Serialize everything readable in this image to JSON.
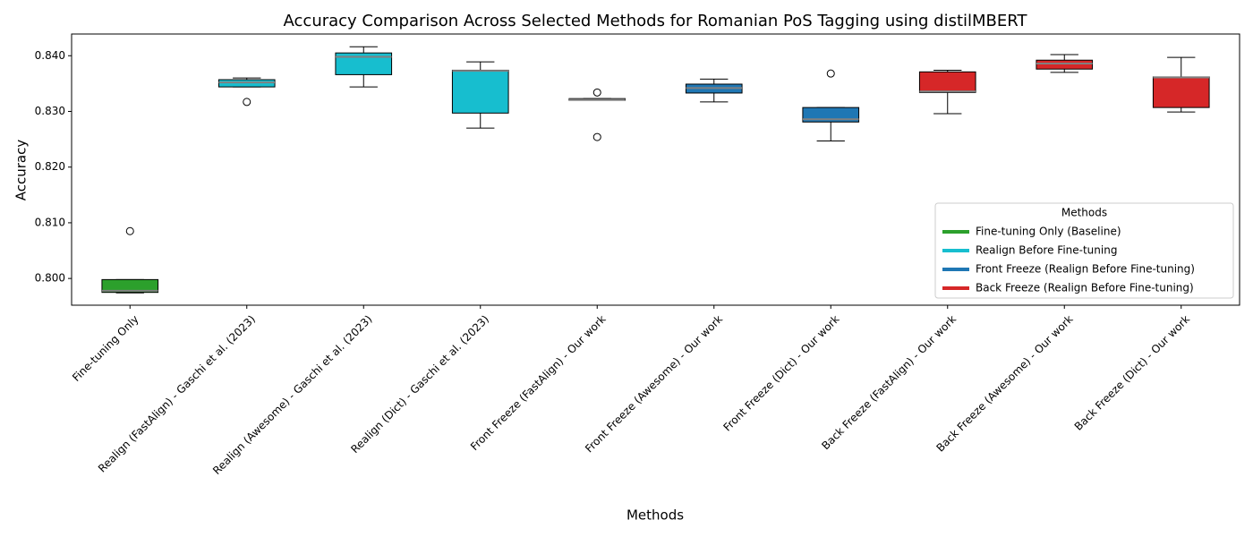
{
  "chart_data": {
    "type": "box",
    "title": "Accuracy Comparison Across Selected Methods for Romanian PoS Tagging using distilMBERT",
    "x_label": "Methods",
    "y_label": "Accuracy",
    "categories": [
      "Fine-tuning Only",
      "Realign (FastAlign) - Gaschi et al. (2023)",
      "Realign (Awesome) - Gaschi et al. (2023)",
      "Realign (Dict) - Gaschi et al. (2023)",
      "Front Freeze (FastAlign) - Our work",
      "Front Freeze (Awesome) - Our work",
      "Front Freeze (Dict) - Our work",
      "Back Freeze (FastAlign) - Our work",
      "Back Freeze (Awesome) - Our work",
      "Back Freeze (Dict) - Our work"
    ],
    "boxes": [
      {
        "whislo": 0.7974,
        "q1": 0.7975,
        "med": 0.7978,
        "q3": 0.7998,
        "whishi": 0.7998,
        "fliers": [
          0.8085
        ],
        "color": "#2ca02c"
      },
      {
        "whislo": 0.8344,
        "q1": 0.8344,
        "med": 0.8352,
        "q3": 0.8357,
        "whishi": 0.836,
        "fliers": [
          0.8317
        ],
        "color": "#17becf"
      },
      {
        "whislo": 0.8344,
        "q1": 0.8366,
        "med": 0.8398,
        "q3": 0.8405,
        "whishi": 0.8416,
        "fliers": [],
        "color": "#17becf"
      },
      {
        "whislo": 0.827,
        "q1": 0.8297,
        "med": 0.8373,
        "q3": 0.8374,
        "whishi": 0.8389,
        "fliers": [],
        "color": "#17becf"
      },
      {
        "whislo": 0.832,
        "q1": 0.832,
        "med": 0.8321,
        "q3": 0.8323,
        "whishi": 0.8323,
        "fliers": [
          0.8334,
          0.8254
        ],
        "color": "#1f77b4"
      },
      {
        "whislo": 0.8317,
        "q1": 0.8333,
        "med": 0.8342,
        "q3": 0.8349,
        "whishi": 0.8358,
        "fliers": [],
        "color": "#1f77b4"
      },
      {
        "whislo": 0.8247,
        "q1": 0.8281,
        "med": 0.8286,
        "q3": 0.8307,
        "whishi": 0.8307,
        "fliers": [
          0.8368
        ],
        "color": "#1f77b4"
      },
      {
        "whislo": 0.8296,
        "q1": 0.8334,
        "med": 0.8336,
        "q3": 0.8371,
        "whishi": 0.8374,
        "fliers": [],
        "color": "#d62728"
      },
      {
        "whislo": 0.837,
        "q1": 0.8376,
        "med": 0.8386,
        "q3": 0.8392,
        "whishi": 0.8402,
        "fliers": [],
        "color": "#d62728"
      },
      {
        "whislo": 0.8299,
        "q1": 0.8307,
        "med": 0.8361,
        "q3": 0.8362,
        "whishi": 0.8397,
        "fliers": [],
        "color": "#d62728"
      }
    ],
    "ylim": [
      0.7952,
      0.8439
    ],
    "yticks": [
      {
        "value": 0.8,
        "label": "0.800"
      },
      {
        "value": 0.81,
        "label": "0.810"
      },
      {
        "value": 0.82,
        "label": "0.820"
      },
      {
        "value": 0.83,
        "label": "0.830"
      },
      {
        "value": 0.84,
        "label": "0.840"
      }
    ],
    "legend_title": "Methods",
    "legend_position": "lower right",
    "legend": [
      {
        "name": "Fine-tuning Only (Baseline)",
        "color": "#2ca02c"
      },
      {
        "name": "Realign Before Fine-tuning",
        "color": "#17becf"
      },
      {
        "name": "Front Freeze (Realign Before Fine-tuning)",
        "color": "#1f77b4"
      },
      {
        "name": "Back Freeze (Realign Before Fine-tuning)",
        "color": "#d62728"
      }
    ]
  }
}
